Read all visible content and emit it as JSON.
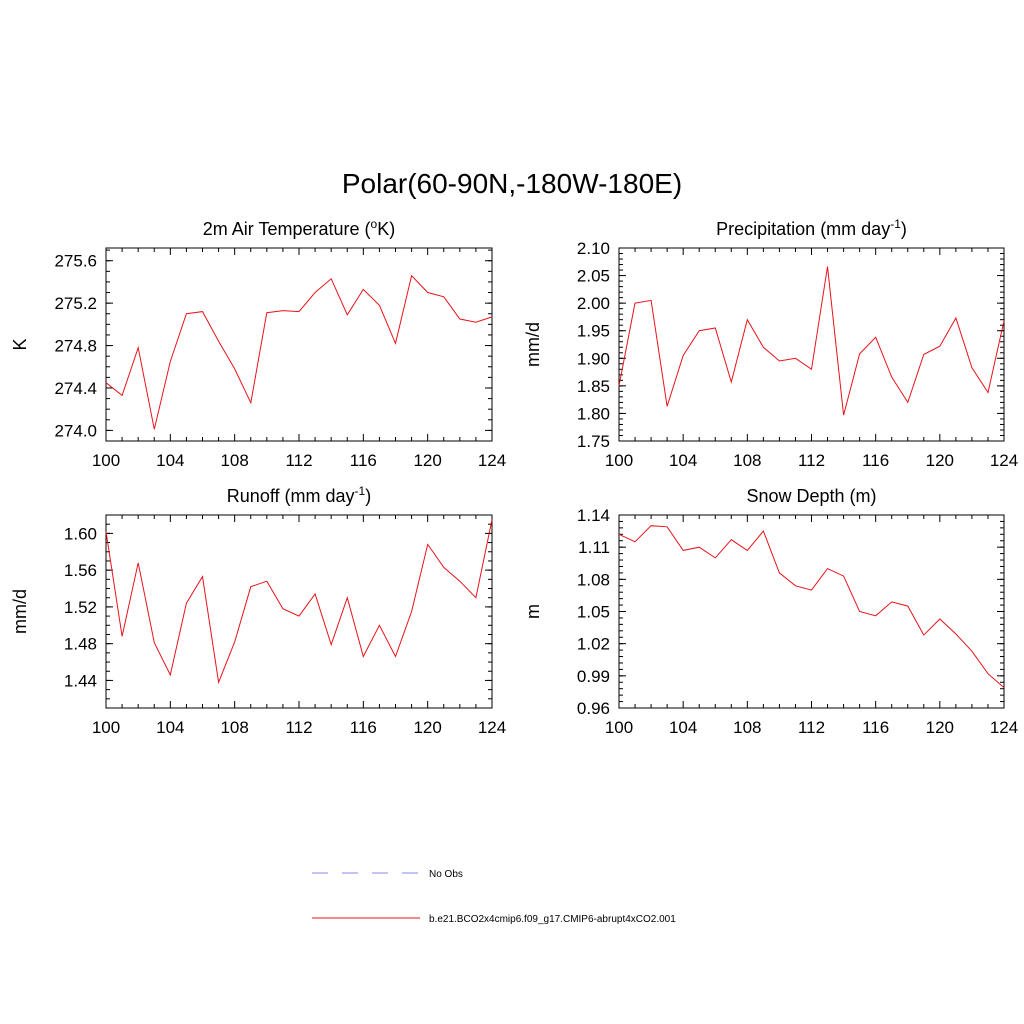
{
  "figure": {
    "title": "Polar(60-90N,-180W-180E)"
  },
  "chart_data": [
    {
      "type": "line",
      "title": "2m Air Temperature",
      "title_unit_base": "(",
      "title_unit_sup": "o",
      "title_unit_tail": "K)",
      "ylabel": "K",
      "xlim": [
        100,
        124
      ],
      "ylim": [
        273.9,
        275.72
      ],
      "xticks": [
        100,
        104,
        108,
        112,
        116,
        120,
        124
      ],
      "xtick_labels": [
        "100",
        "104",
        "108",
        "112",
        "116",
        "120",
        "124"
      ],
      "yticks": [
        274.0,
        274.4,
        274.8,
        275.2,
        275.6
      ],
      "ytick_labels": [
        "274.0",
        "274.4",
        "274.8",
        "275.2",
        "275.6"
      ],
      "minor_y_step": 0.1,
      "x": [
        100,
        101,
        102,
        103,
        104,
        105,
        106,
        107,
        108,
        109,
        110,
        111,
        112,
        113,
        114,
        115,
        116,
        117,
        118,
        119,
        120,
        121,
        122,
        123,
        124
      ],
      "series": [
        {
          "name": "b.e21.BCO2x4cmip6.f09_g17.CMIP6-abrupt4xCO2.001",
          "values": [
            274.45,
            274.33,
            274.78,
            274.01,
            274.65,
            275.1,
            275.12,
            274.84,
            274.58,
            274.26,
            275.11,
            275.13,
            275.12,
            275.3,
            275.43,
            275.09,
            275.33,
            275.18,
            274.82,
            275.46,
            275.3,
            275.26,
            275.05,
            275.02,
            275.07
          ]
        }
      ]
    },
    {
      "type": "line",
      "title": "Precipitation",
      "title_unit_base": "(mm day",
      "title_unit_sup": "-1",
      "title_unit_tail": ")",
      "ylabel": "mm/d",
      "xlim": [
        100,
        124
      ],
      "ylim": [
        1.75,
        2.1
      ],
      "xticks": [
        100,
        104,
        108,
        112,
        116,
        120,
        124
      ],
      "xtick_labels": [
        "100",
        "104",
        "108",
        "112",
        "116",
        "120",
        "124"
      ],
      "yticks": [
        1.75,
        1.8,
        1.85,
        1.9,
        1.95,
        2.0,
        2.05,
        2.1
      ],
      "ytick_labels": [
        "1.75",
        "1.80",
        "1.85",
        "1.90",
        "1.95",
        "2.00",
        "2.05",
        "2.10"
      ],
      "minor_y_step": 0.01,
      "x": [
        100,
        101,
        102,
        103,
        104,
        105,
        106,
        107,
        108,
        109,
        110,
        111,
        112,
        113,
        114,
        115,
        116,
        117,
        118,
        119,
        120,
        121,
        122,
        123,
        124
      ],
      "series": [
        {
          "name": "b.e21.BCO2x4cmip6.f09_g17.CMIP6-abrupt4xCO2.001",
          "values": [
            1.85,
            2.0,
            2.005,
            1.813,
            1.905,
            1.95,
            1.955,
            1.857,
            1.97,
            1.92,
            1.895,
            1.9,
            1.88,
            2.066,
            1.797,
            1.908,
            1.938,
            1.866,
            1.82,
            1.907,
            1.922,
            1.973,
            1.883,
            1.838,
            1.968
          ]
        }
      ]
    },
    {
      "type": "line",
      "title": "Runoff",
      "title_unit_base": "(mm day",
      "title_unit_sup": "-1",
      "title_unit_tail": ")",
      "ylabel": "mm/d",
      "xlim": [
        100,
        124
      ],
      "ylim": [
        1.41,
        1.62
      ],
      "xticks": [
        100,
        104,
        108,
        112,
        116,
        120,
        124
      ],
      "xtick_labels": [
        "100",
        "104",
        "108",
        "112",
        "116",
        "120",
        "124"
      ],
      "yticks": [
        1.44,
        1.48,
        1.52,
        1.56,
        1.6
      ],
      "ytick_labels": [
        "1.44",
        "1.48",
        "1.52",
        "1.56",
        "1.60"
      ],
      "minor_y_step": 0.01,
      "x": [
        100,
        101,
        102,
        103,
        104,
        105,
        106,
        107,
        108,
        109,
        110,
        111,
        112,
        113,
        114,
        115,
        116,
        117,
        118,
        119,
        120,
        121,
        122,
        123,
        124
      ],
      "series": [
        {
          "name": "b.e21.BCO2x4cmip6.f09_g17.CMIP6-abrupt4xCO2.001",
          "values": [
            1.602,
            1.488,
            1.568,
            1.481,
            1.446,
            1.524,
            1.553,
            1.438,
            1.482,
            1.542,
            1.548,
            1.518,
            1.51,
            1.534,
            1.479,
            1.53,
            1.466,
            1.5,
            1.466,
            1.515,
            1.588,
            1.563,
            1.548,
            1.53,
            1.615
          ]
        }
      ]
    },
    {
      "type": "line",
      "title": "Snow Depth (m)",
      "title_unit_base": "",
      "title_unit_sup": "",
      "title_unit_tail": "",
      "ylabel": "m",
      "xlim": [
        100,
        124
      ],
      "ylim": [
        0.96,
        1.14
      ],
      "xticks": [
        100,
        104,
        108,
        112,
        116,
        120,
        124
      ],
      "xtick_labels": [
        "100",
        "104",
        "108",
        "112",
        "116",
        "120",
        "124"
      ],
      "yticks": [
        0.96,
        0.99,
        1.02,
        1.05,
        1.08,
        1.11,
        1.14
      ],
      "ytick_labels": [
        "0.96",
        "0.99",
        "1.02",
        "1.05",
        "1.08",
        "1.11",
        "1.14"
      ],
      "minor_y_step": 0.006,
      "x": [
        100,
        101,
        102,
        103,
        104,
        105,
        106,
        107,
        108,
        109,
        110,
        111,
        112,
        113,
        114,
        115,
        116,
        117,
        118,
        119,
        120,
        121,
        122,
        123,
        124
      ],
      "series": [
        {
          "name": "b.e21.BCO2x4cmip6.f09_g17.CMIP6-abrupt4xCO2.001",
          "values": [
            1.122,
            1.115,
            1.13,
            1.129,
            1.107,
            1.11,
            1.1,
            1.117,
            1.107,
            1.125,
            1.086,
            1.074,
            1.07,
            1.09,
            1.083,
            1.05,
            1.046,
            1.059,
            1.055,
            1.028,
            1.043,
            1.029,
            1.013,
            0.992,
            0.979
          ]
        }
      ]
    }
  ],
  "legend": {
    "items": [
      {
        "label": "No Obs",
        "color": "#8a8ae8",
        "dash": true
      },
      {
        "label": "b.e21.BCO2x4cmip6.f09_g17.CMIP6-abrupt4xCO2.001",
        "color": "#e8131b",
        "dash": false
      }
    ]
  },
  "colors": {
    "series": "#e8131b",
    "obs": "#8a8ae8",
    "axis": "#000000"
  }
}
